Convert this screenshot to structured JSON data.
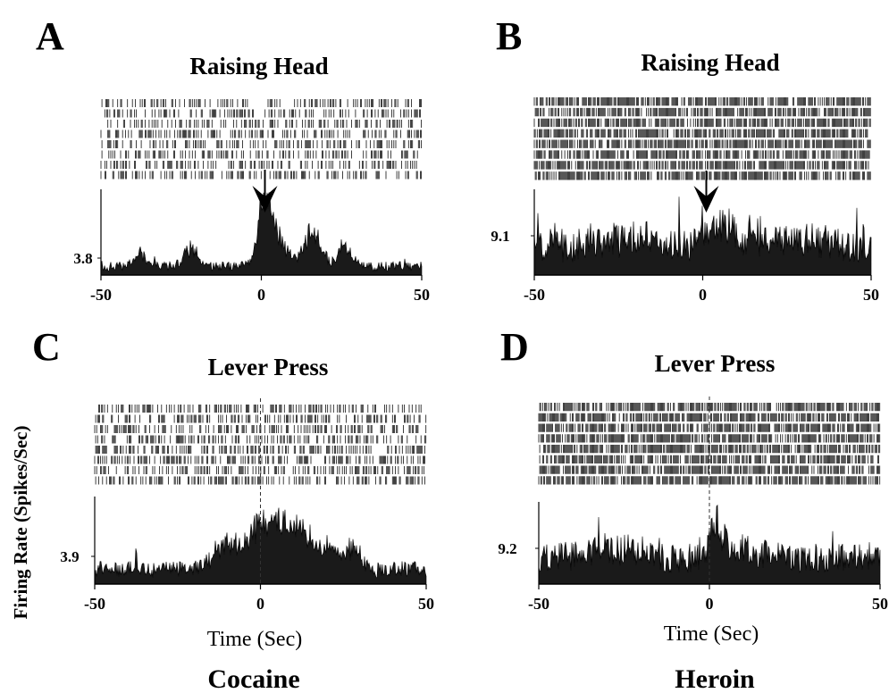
{
  "figure": {
    "ylabel": "Firing Rate (Spikes/Sec)",
    "xlabels": [
      "Time (Sec)",
      "Time (Sec)"
    ],
    "conditions": [
      "Cocaine",
      "Heroin"
    ]
  },
  "chart_data": [
    {
      "type": "histogram_raster",
      "panel": "A",
      "title": "Raising Head",
      "xlim": [
        -50,
        50
      ],
      "xticks": [
        -50,
        0,
        50
      ],
      "yvalue_label": "3.8",
      "raster_rows": 8,
      "event_marker": "arrow",
      "event_time": 0,
      "density": 0.34,
      "baseline_fraction": 0.12,
      "peaks": [
        {
          "t": 1,
          "amp": 0.72,
          "w": 1.8
        },
        {
          "t": 4,
          "amp": 0.45,
          "w": 3.5
        },
        {
          "t": 16,
          "amp": 0.5,
          "w": 2.5
        },
        {
          "t": -22,
          "amp": 0.25,
          "w": 2
        },
        {
          "t": 26,
          "amp": 0.28,
          "w": 2
        },
        {
          "t": -38,
          "amp": 0.2,
          "w": 2
        }
      ]
    },
    {
      "type": "histogram_raster",
      "panel": "B",
      "title": "Raising Head",
      "xlim": [
        -50,
        50
      ],
      "xticks": [
        -50,
        0,
        50
      ],
      "yvalue_label": "9.1",
      "raster_rows": 8,
      "event_marker": "arrow",
      "event_time": 0,
      "density": 0.72,
      "baseline_fraction": 0.42,
      "peaks": [
        {
          "t": 6,
          "amp": 0.25,
          "w": 4
        },
        {
          "t": -20,
          "amp": 0.12,
          "w": 6
        },
        {
          "t": 30,
          "amp": 0.1,
          "w": 5
        }
      ]
    },
    {
      "type": "histogram_raster",
      "panel": "C",
      "title": "Lever Press",
      "xlim": [
        -50,
        50
      ],
      "xticks": [
        -50,
        0,
        50
      ],
      "yvalue_label": "3.9",
      "raster_rows": 8,
      "event_marker": "dashed",
      "event_time": 0,
      "density": 0.4,
      "baseline_fraction": 0.2,
      "peaks": [
        {
          "t": 0,
          "amp": 0.6,
          "w": 3
        },
        {
          "t": 6,
          "amp": 0.5,
          "w": 3
        },
        {
          "t": 12,
          "amp": 0.45,
          "w": 3
        },
        {
          "t": -10,
          "amp": 0.35,
          "w": 4
        },
        {
          "t": 20,
          "amp": 0.3,
          "w": 3
        },
        {
          "t": 28,
          "amp": 0.3,
          "w": 2
        }
      ]
    },
    {
      "type": "histogram_raster",
      "panel": "D",
      "title": "Lever Press",
      "xlim": [
        -50,
        50
      ],
      "xticks": [
        -50,
        0,
        50
      ],
      "yvalue_label": "9.2",
      "raster_rows": 8,
      "event_marker": "dashed",
      "event_time": 0,
      "density": 0.75,
      "baseline_fraction": 0.38,
      "peaks": [
        {
          "t": 2,
          "amp": 0.45,
          "w": 2
        },
        {
          "t": -30,
          "amp": 0.15,
          "w": 6
        },
        {
          "t": 10,
          "amp": 0.12,
          "w": 5
        }
      ]
    }
  ]
}
